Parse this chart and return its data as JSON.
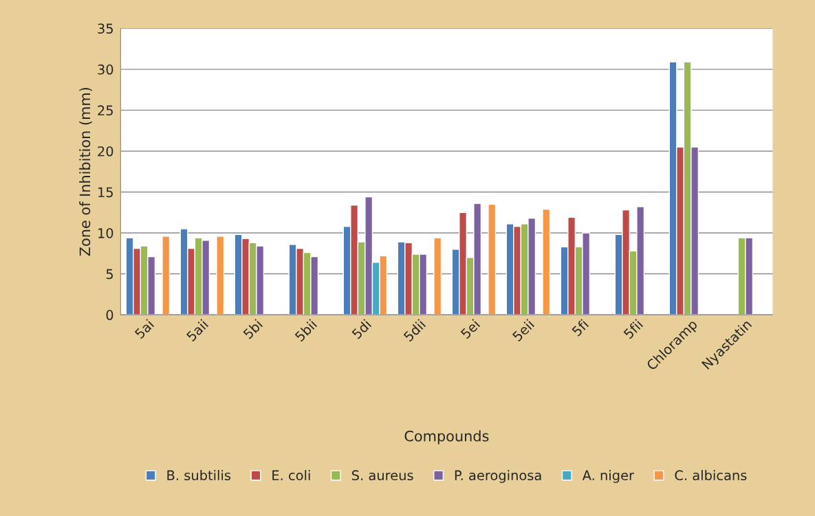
{
  "chart_data": {
    "type": "bar",
    "xlabel": "Compounds",
    "ylabel": "Zone of Inhibition (mm)",
    "categories": [
      "5ai",
      "5aii",
      "5bi",
      "5bii",
      "5di",
      "5dii",
      "5ei",
      "5eii",
      "5fi",
      "5fii",
      "Chloramp",
      "Nyastatin"
    ],
    "series": [
      {
        "name": "B. subtilis",
        "color": "#4a7ebb",
        "values": [
          9.4,
          10.5,
          9.8,
          8.6,
          10.8,
          8.9,
          8.0,
          11.1,
          8.3,
          9.8,
          30.9,
          null
        ]
      },
      {
        "name": "E. coli",
        "color": "#be4b48",
        "values": [
          8.1,
          8.1,
          9.3,
          8.1,
          13.4,
          8.8,
          12.5,
          10.8,
          11.9,
          12.8,
          20.5,
          null
        ]
      },
      {
        "name": "S. aureus",
        "color": "#98b954",
        "values": [
          8.4,
          9.4,
          8.8,
          7.6,
          8.9,
          7.4,
          7.0,
          11.1,
          8.3,
          7.8,
          30.9,
          9.4
        ]
      },
      {
        "name": "P. aeroginosa",
        "color": "#7d60a0",
        "values": [
          7.1,
          9.1,
          8.4,
          7.1,
          14.4,
          7.4,
          13.6,
          11.8,
          10.0,
          13.2,
          20.5,
          9.4
        ]
      },
      {
        "name": "A. niger",
        "color": "#46aac5",
        "values": [
          null,
          null,
          null,
          null,
          6.4,
          null,
          null,
          null,
          null,
          null,
          null,
          null
        ]
      },
      {
        "name": "C. albicans",
        "color": "#f79646",
        "values": [
          9.6,
          9.6,
          null,
          null,
          7.2,
          9.4,
          13.5,
          12.9,
          null,
          null,
          null,
          null
        ]
      }
    ],
    "ylim": [
      0,
      35
    ],
    "yticks": [
      0,
      5,
      10,
      15,
      20,
      25,
      30,
      35
    ],
    "grid": "y",
    "legend": "bottom"
  }
}
